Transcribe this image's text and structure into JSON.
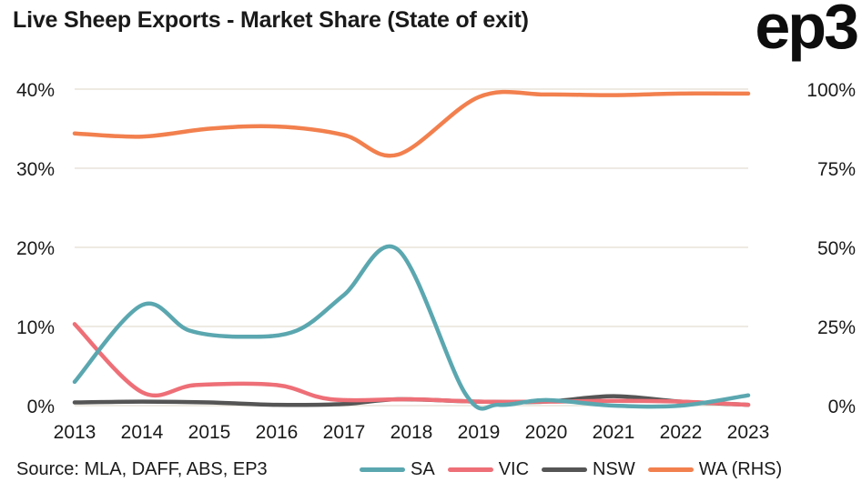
{
  "title": "Live Sheep Exports - Market Share (State of exit)",
  "logo": "ep3",
  "source": "Source: MLA, DAFF, ABS, EP3",
  "chart_data": {
    "type": "line",
    "x": [
      2013,
      2014,
      2015,
      2016,
      2017,
      2018,
      2019,
      2020,
      2021,
      2022,
      2023
    ],
    "x_tick_labels": [
      "2013",
      "2014",
      "2015",
      "2016",
      "2017",
      "2018",
      "2019",
      "2020",
      "2021",
      "2022",
      "2023"
    ],
    "y_left_ticks": [
      "0%",
      "10%",
      "20%",
      "30%",
      "40%"
    ],
    "y_right_ticks": [
      "0%",
      "25%",
      "50%",
      "75%",
      "100%"
    ],
    "ylim_left": [
      0,
      40
    ],
    "ylim_right": [
      0,
      100
    ],
    "grid": true,
    "legend_position": "bottom",
    "series": [
      {
        "name": "SA",
        "axis": "left",
        "color": "#5ba7b0",
        "points": [
          [
            2013,
            3.0
          ],
          [
            2014,
            12.7
          ],
          [
            2014.7,
            9.5
          ],
          [
            2015.5,
            8.7
          ],
          [
            2016.3,
            9.5
          ],
          [
            2017,
            14
          ],
          [
            2017.8,
            19.7
          ],
          [
            2018.8,
            1.5
          ],
          [
            2019.3,
            0.1
          ],
          [
            2020,
            0.7
          ],
          [
            2021,
            0
          ],
          [
            2022,
            0
          ],
          [
            2023,
            1.3
          ]
        ]
      },
      {
        "name": "VIC",
        "axis": "left",
        "color": "#ee6f77",
        "points": [
          [
            2013,
            10.3
          ],
          [
            2014,
            1.7
          ],
          [
            2014.8,
            2.6
          ],
          [
            2016,
            2.6
          ],
          [
            2016.8,
            0.8
          ],
          [
            2018,
            0.8
          ],
          [
            2019,
            0.5
          ],
          [
            2020,
            0.5
          ],
          [
            2021,
            0.6
          ],
          [
            2022,
            0.5
          ],
          [
            2023,
            0.1
          ]
        ]
      },
      {
        "name": "NSW",
        "axis": "left",
        "color": "#555555",
        "points": [
          [
            2013,
            0.4
          ],
          [
            2014,
            0.5
          ],
          [
            2015,
            0.4
          ],
          [
            2016,
            0.1
          ],
          [
            2017,
            0.2
          ],
          [
            2017.8,
            0.8
          ],
          [
            2019,
            0.5
          ],
          [
            2020,
            0.5
          ],
          [
            2021,
            1.2
          ],
          [
            2022,
            0.5
          ],
          [
            2023,
            0.1
          ]
        ]
      },
      {
        "name": "WA (RHS)",
        "axis": "right",
        "color": "#f2804e",
        "points": [
          [
            2013,
            86
          ],
          [
            2014,
            85
          ],
          [
            2015,
            87.5
          ],
          [
            2016,
            88.2
          ],
          [
            2017,
            85.5
          ],
          [
            2017.8,
            79.3
          ],
          [
            2019,
            97.5
          ],
          [
            2020,
            98.3
          ],
          [
            2021,
            98.1
          ],
          [
            2022,
            98.6
          ],
          [
            2023,
            98.6
          ]
        ]
      }
    ]
  }
}
